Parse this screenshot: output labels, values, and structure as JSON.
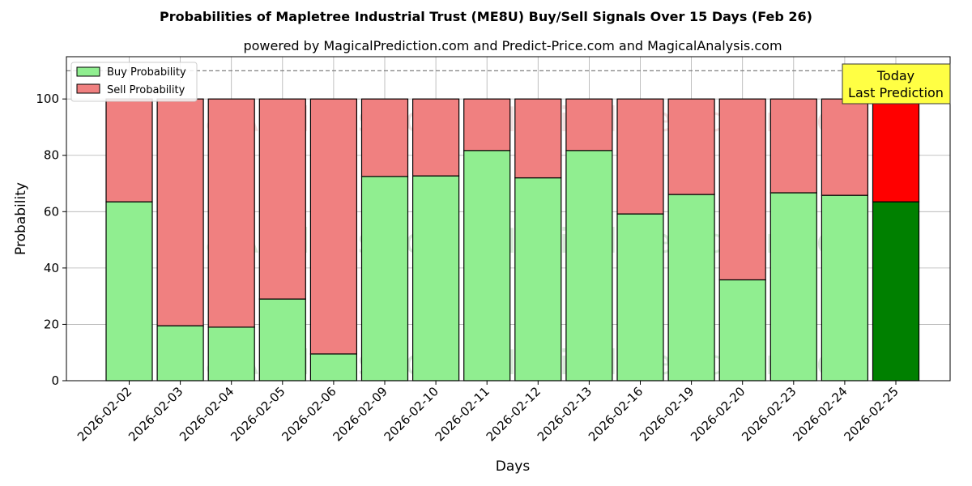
{
  "title": "Probabilities of Mapletree Industrial Trust (ME8U) Buy/Sell Signals Over 15 Days (Feb 26)",
  "subtitle": "powered by MagicalPrediction.com and Predict-Price.com and MagicalAnalysis.com",
  "watermarks": [
    "MagicalAnalysis.com",
    "MagicalPrediction.com"
  ],
  "annotation": {
    "line1": "Today",
    "line2": "Last Prediction"
  },
  "colors": {
    "buy": "#90ee90",
    "sell": "#f08080",
    "buy_today": "#008000",
    "sell_today": "#ff0000",
    "annotation_bg": "#ffff44",
    "grid": "#b0b0b0",
    "dashed_line": "#808080"
  },
  "chart_data": {
    "type": "bar",
    "stacked": true,
    "xlabel": "Days",
    "ylabel": "Probability",
    "ylim": [
      0,
      115
    ],
    "yticks": [
      0,
      20,
      40,
      60,
      80,
      100
    ],
    "grid": true,
    "legend_position": "top-left",
    "reference_line": 110,
    "categories": [
      "2026-02-02",
      "2026-02-03",
      "2026-02-04",
      "2026-02-05",
      "2026-02-06",
      "2026-02-09",
      "2026-02-10",
      "2026-02-11",
      "2026-02-12",
      "2026-02-13",
      "2026-02-16",
      "2026-02-19",
      "2026-02-20",
      "2026-02-23",
      "2026-02-24",
      "2026-02-25"
    ],
    "series": [
      {
        "name": "Buy Probability",
        "values": [
          63.5,
          19.5,
          19.0,
          29.0,
          9.5,
          72.5,
          72.7,
          81.7,
          72.0,
          81.7,
          59.2,
          66.1,
          35.8,
          66.7,
          65.8,
          63.5
        ]
      },
      {
        "name": "Sell Probability",
        "values": [
          36.5,
          80.5,
          81.0,
          71.0,
          90.5,
          27.5,
          27.3,
          18.3,
          28.0,
          18.3,
          40.8,
          33.9,
          64.2,
          33.3,
          34.2,
          36.5
        ]
      }
    ],
    "highlight_index": 15
  }
}
